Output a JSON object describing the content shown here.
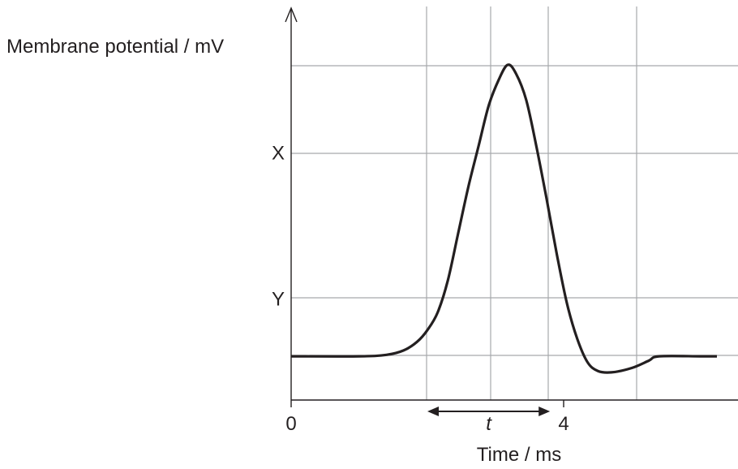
{
  "chart_data": {
    "type": "line",
    "title": "",
    "xlabel": "Time / ms",
    "ylabel": "Membrane potential / mV",
    "x_ticks": [
      {
        "value": 0,
        "label": "0"
      },
      {
        "value": 4,
        "label": "4"
      }
    ],
    "y_ticks": [
      {
        "value": 20,
        "label": "X"
      },
      {
        "value": -30,
        "label": "Y"
      }
    ],
    "grid": true,
    "xlim": [
      0,
      6.25
    ],
    "ylim": [
      -65,
      70
    ],
    "series": [
      {
        "name": "",
        "color": "#231f20",
        "points": [
          [
            0,
            -50
          ],
          [
            1.0,
            -50
          ],
          [
            1.4,
            -49.5
          ],
          [
            1.65,
            -48
          ],
          [
            1.85,
            -45
          ],
          [
            2.0,
            -41
          ],
          [
            2.15,
            -35
          ],
          [
            2.3,
            -24
          ],
          [
            2.45,
            -8
          ],
          [
            2.6,
            8
          ],
          [
            2.75,
            22
          ],
          [
            2.9,
            36
          ],
          [
            3.05,
            45
          ],
          [
            3.18,
            50
          ],
          [
            3.3,
            47
          ],
          [
            3.45,
            38
          ],
          [
            3.6,
            22
          ],
          [
            3.75,
            4
          ],
          [
            3.9,
            -15
          ],
          [
            4.05,
            -32
          ],
          [
            4.2,
            -44
          ],
          [
            4.35,
            -52
          ],
          [
            4.5,
            -55
          ],
          [
            4.7,
            -55.5
          ],
          [
            5.0,
            -54
          ],
          [
            5.25,
            -51.5
          ],
          [
            5.4,
            -50
          ],
          [
            6.0,
            -50
          ],
          [
            6.25,
            -50
          ]
        ]
      }
    ],
    "annotation": {
      "label": "t",
      "x_from": 2.0,
      "x_to": 3.8
    }
  }
}
